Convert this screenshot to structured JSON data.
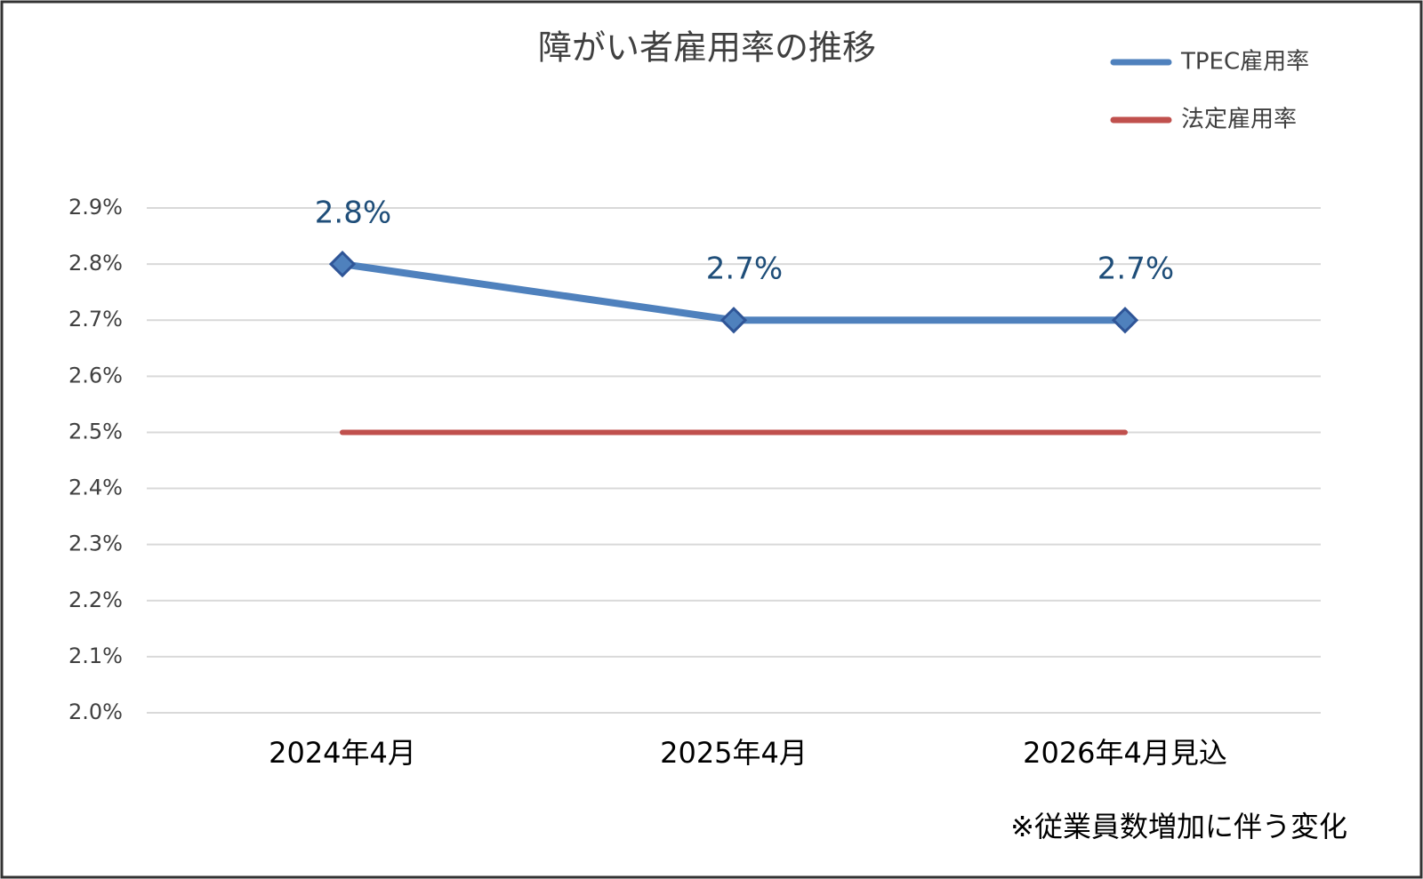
{
  "chart_data": {
    "type": "line",
    "title": "障がい者雇用率の推移",
    "categories": [
      "2024年4月",
      "2025年4月",
      "2026年4月見込"
    ],
    "series": [
      {
        "name": "TPEC雇用率",
        "color": "#4f81bd",
        "values": [
          2.8,
          2.7,
          2.7
        ],
        "value_labels": [
          "2.8%",
          "2.7%",
          "2.7%"
        ],
        "marker": "diamond"
      },
      {
        "name": "法定雇用率",
        "color": "#c0504d",
        "values": [
          2.5,
          2.5,
          2.5
        ]
      }
    ],
    "ylim": [
      2.0,
      2.9
    ],
    "yticks": [
      {
        "value": 2.0,
        "label": "2.0%"
      },
      {
        "value": 2.1,
        "label": "2.1%"
      },
      {
        "value": 2.2,
        "label": "2.2%"
      },
      {
        "value": 2.3,
        "label": "2.3%"
      },
      {
        "value": 2.4,
        "label": "2.4%"
      },
      {
        "value": 2.5,
        "label": "2.5%"
      },
      {
        "value": 2.6,
        "label": "2.6%"
      },
      {
        "value": 2.7,
        "label": "2.7%"
      },
      {
        "value": 2.8,
        "label": "2.8%"
      },
      {
        "value": 2.9,
        "label": "2.9%"
      }
    ],
    "grid": true,
    "legend": "top-right",
    "annotation": "※従業員数増加に伴う変化"
  }
}
